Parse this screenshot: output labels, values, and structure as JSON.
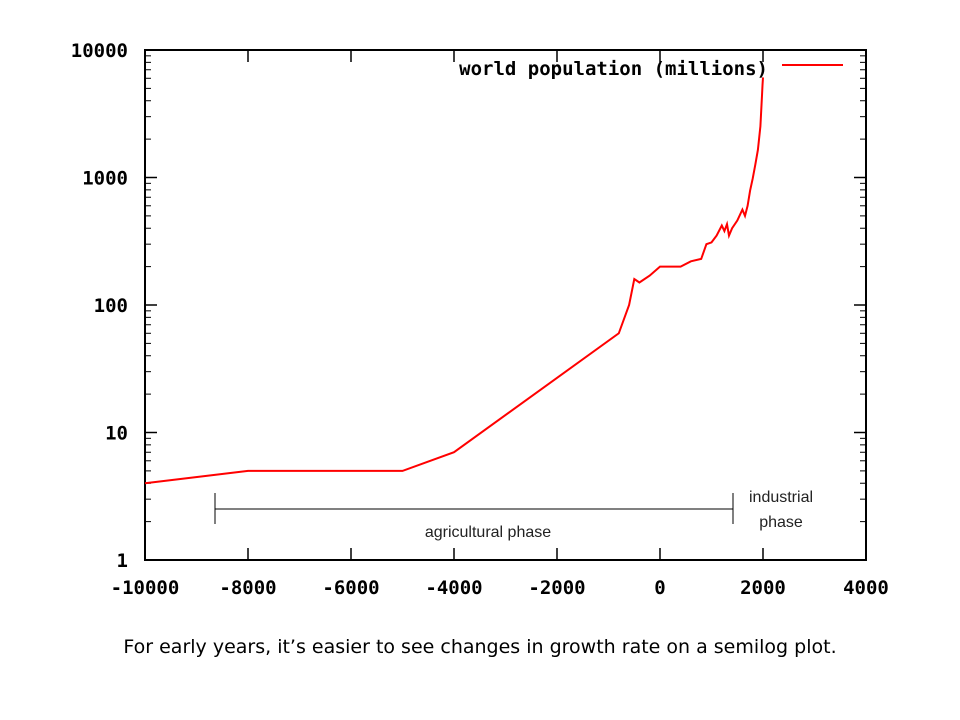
{
  "chart_data": {
    "type": "line",
    "yscale": "log",
    "xlim": [
      -10000,
      4000
    ],
    "ylim": [
      1,
      10000
    ],
    "x_ticks": [
      -10000,
      -8000,
      -6000,
      -4000,
      -2000,
      0,
      2000,
      4000
    ],
    "x_tick_labels": [
      "-10000",
      "-8000",
      "-6000",
      "-4000",
      "-2000",
      "0",
      "2000",
      "4000"
    ],
    "y_ticks": [
      1,
      10,
      100,
      1000,
      10000
    ],
    "y_tick_labels": [
      "1",
      "10",
      "100",
      "1000",
      "10000"
    ],
    "legend_position": "top-right",
    "series": [
      {
        "name": "world population (millions)",
        "color": "#ff0000",
        "x": [
          -10000,
          -8000,
          -5000,
          -4000,
          -800,
          -600,
          -500,
          -400,
          -200,
          0,
          200,
          400,
          600,
          800,
          900,
          1000,
          1100,
          1200,
          1250,
          1300,
          1340,
          1400,
          1500,
          1600,
          1650,
          1700,
          1750,
          1800,
          1850,
          1900,
          1950,
          1960,
          1970,
          1980,
          1990,
          2000
        ],
        "y": [
          4,
          5,
          5,
          7,
          60,
          100,
          160,
          150,
          170,
          200,
          200,
          200,
          220,
          230,
          300,
          310,
          350,
          420,
          380,
          430,
          350,
          400,
          460,
          560,
          500,
          600,
          790,
          980,
          1260,
          1650,
          2520,
          3000,
          3700,
          4400,
          5300,
          6100
        ]
      }
    ],
    "annotations": {
      "agricultural": "agricultural phase",
      "industrial_line1": "industrial",
      "industrial_line2": "phase"
    }
  },
  "caption": "For early years, it’s easier to see changes in growth rate on a semilog plot."
}
